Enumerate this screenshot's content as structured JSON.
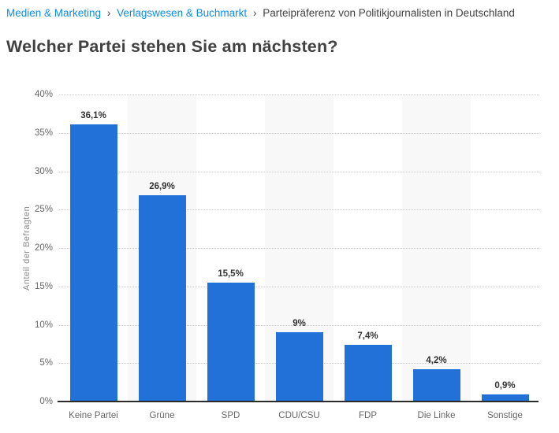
{
  "breadcrumb": {
    "separator": "›",
    "items": [
      {
        "label": "Medien & Marketing"
      },
      {
        "label": "Verlagswesen & Buchmarkt"
      },
      {
        "label": "Parteipräferenz von Politikjournalisten in Deutschland"
      }
    ]
  },
  "page_title": "Welcher Partei stehen Sie am nächsten?",
  "colors": {
    "bar": "#2271d8",
    "band": "#f8f8f8",
    "grid": "#c9c9c9",
    "axis_line": "#2b2b2b",
    "link": "#0d8ce8",
    "heading": "#414141",
    "tick_label": "#666666",
    "data_label": "#333333",
    "y_axis_title": "#8a8a8a"
  },
  "chart_data": {
    "type": "bar",
    "title": "Welcher Partei stehen Sie am nächsten?",
    "categories": [
      "Keine Partei",
      "Grüne",
      "SPD",
      "CDU/CSU",
      "FDP",
      "Die Linke",
      "Sonstige"
    ],
    "values": [
      36.1,
      26.9,
      15.5,
      9,
      7.4,
      4.2,
      0.9
    ],
    "data_labels": [
      "36,1%",
      "26,9%",
      "15,5%",
      "9%",
      "7,4%",
      "4,2%",
      "0,9%"
    ],
    "xlabel": "",
    "ylabel": "Anteil der Befragten",
    "ylim": [
      0,
      40
    ],
    "ytick_step": 5,
    "ytick_labels": [
      "0%",
      "5%",
      "10%",
      "15%",
      "20%",
      "25%",
      "30%",
      "35%",
      "40%"
    ],
    "grid": "horizontal-dotted",
    "legend": "none",
    "alternating_category_bands": true
  }
}
